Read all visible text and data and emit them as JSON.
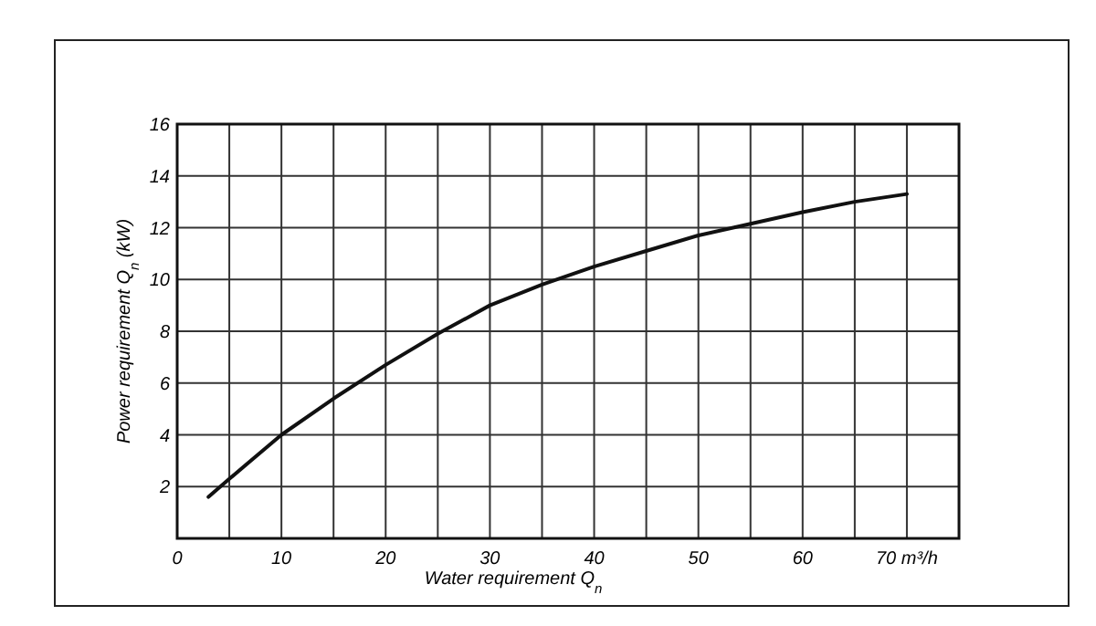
{
  "chart_data": {
    "type": "line",
    "xlabel": "Water requirement Q$_{n}$",
    "ylabel": "Power requirement Q$_{n}$ (kW)",
    "x": [
      3,
      5,
      10,
      15,
      20,
      25,
      30,
      35,
      40,
      45,
      50,
      55,
      60,
      65,
      70
    ],
    "series": [
      {
        "color": "#111111",
        "values": [
          1.6,
          2.3,
          4.0,
          5.4,
          6.7,
          7.9,
          9.0,
          9.8,
          10.5,
          11.1,
          11.7,
          12.15,
          12.6,
          13.0,
          13.3
        ]
      }
    ],
    "xlim": [
      0,
      75
    ],
    "ylim": [
      0,
      16
    ],
    "xticks": [
      0,
      {
        "value": 5,
        "label": null
      },
      10,
      {
        "value": 15,
        "label": null
      },
      20,
      {
        "value": 25,
        "label": null
      },
      30,
      {
        "value": 35,
        "label": null
      },
      40,
      {
        "value": 45,
        "label": null
      },
      50,
      {
        "value": 55,
        "label": null
      },
      60,
      {
        "value": 65,
        "label": null
      },
      {
        "value": 70,
        "label": "70 m³/h"
      }
    ],
    "yticks": [
      {
        "value": 0,
        "label": null
      },
      2,
      4,
      6,
      8,
      10,
      12,
      14,
      16
    ],
    "grid": true,
    "marker": "none",
    "line_style": "solid"
  }
}
